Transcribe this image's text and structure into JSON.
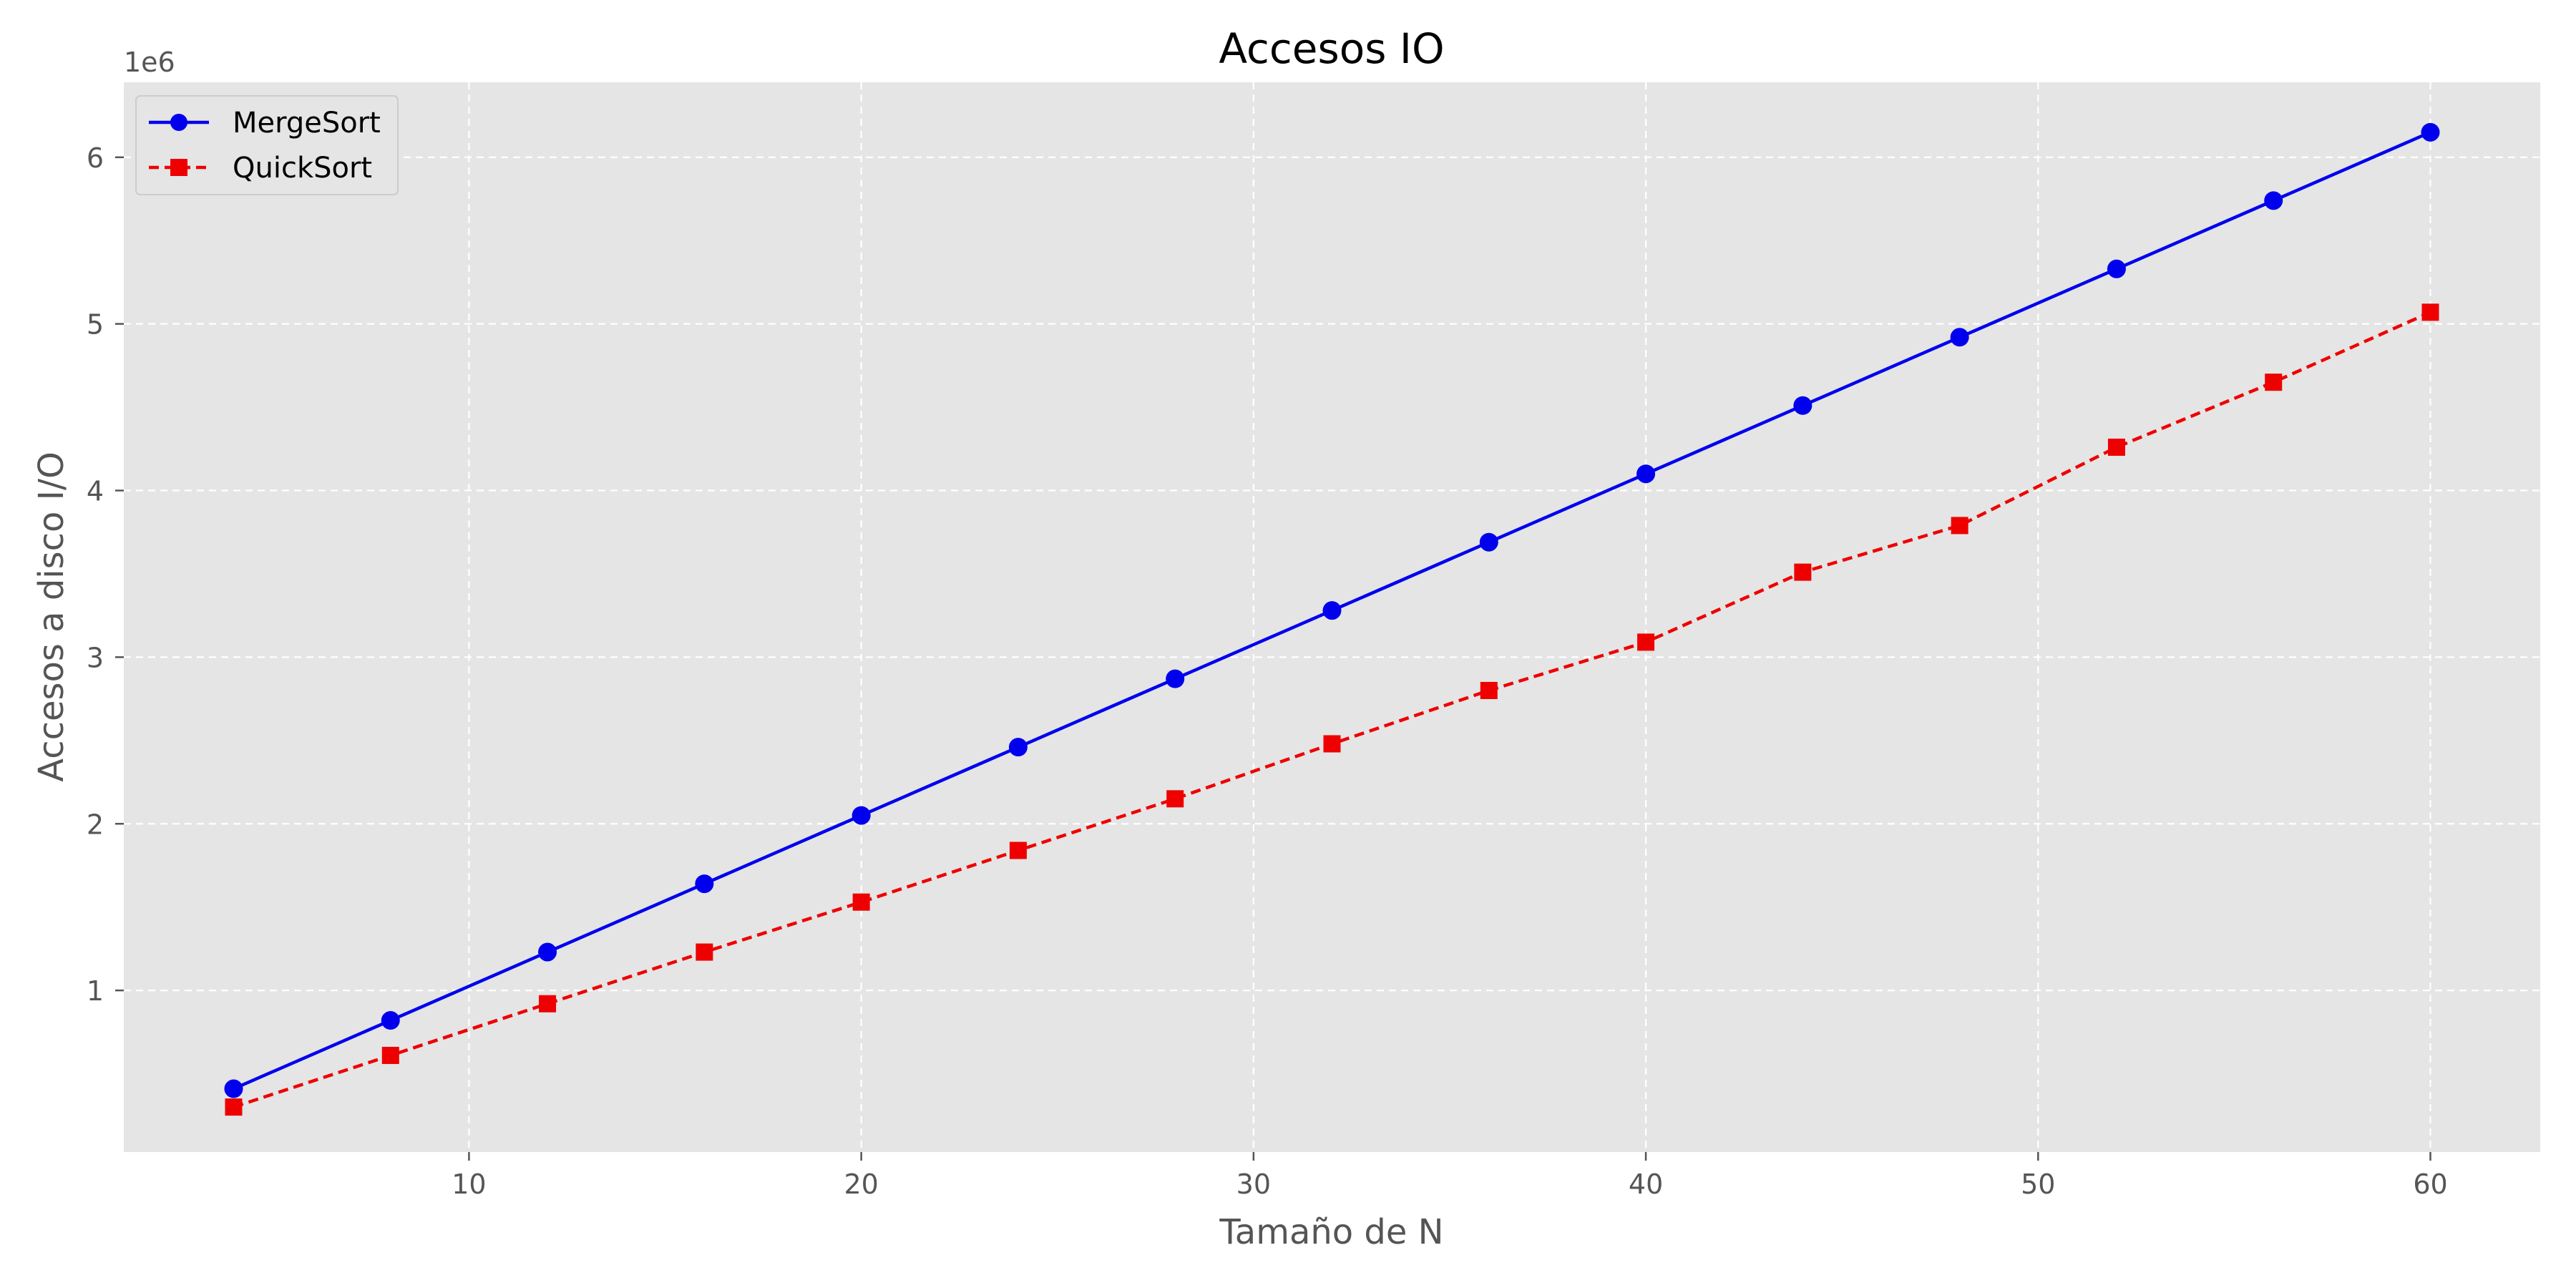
{
  "chart_data": {
    "type": "line",
    "title": "Accesos IO",
    "xlabel": "Tamaño de N",
    "ylabel": "Accesos a disco I/O",
    "y_offset_label": "1e6",
    "x": [
      4,
      8,
      12,
      16,
      20,
      24,
      28,
      32,
      36,
      40,
      44,
      48,
      52,
      56,
      60
    ],
    "xlim": [
      1.2,
      62.8
    ],
    "ylim": [
      0.03,
      6.45
    ],
    "x_ticks": [
      10,
      20,
      30,
      40,
      50,
      60
    ],
    "y_ticks": [
      1,
      2,
      3,
      4,
      5,
      6
    ],
    "grid": true,
    "grid_style": "dashed",
    "legend_position": "upper-left",
    "plot_background": "#e5e5e5",
    "series": [
      {
        "name": "MergeSort",
        "color": "#0000ee",
        "marker": "circle",
        "line_style": "solid",
        "values": [
          0.41,
          0.82,
          1.23,
          1.64,
          2.05,
          2.46,
          2.87,
          3.28,
          3.69,
          4.1,
          4.51,
          4.92,
          5.33,
          5.74,
          6.15
        ]
      },
      {
        "name": "QuickSort",
        "color": "#ee0000",
        "marker": "square",
        "line_style": "dashed",
        "values": [
          0.3,
          0.61,
          0.92,
          1.23,
          1.53,
          1.84,
          2.15,
          2.48,
          2.8,
          3.09,
          3.51,
          3.79,
          4.26,
          4.65,
          5.07
        ]
      }
    ]
  }
}
